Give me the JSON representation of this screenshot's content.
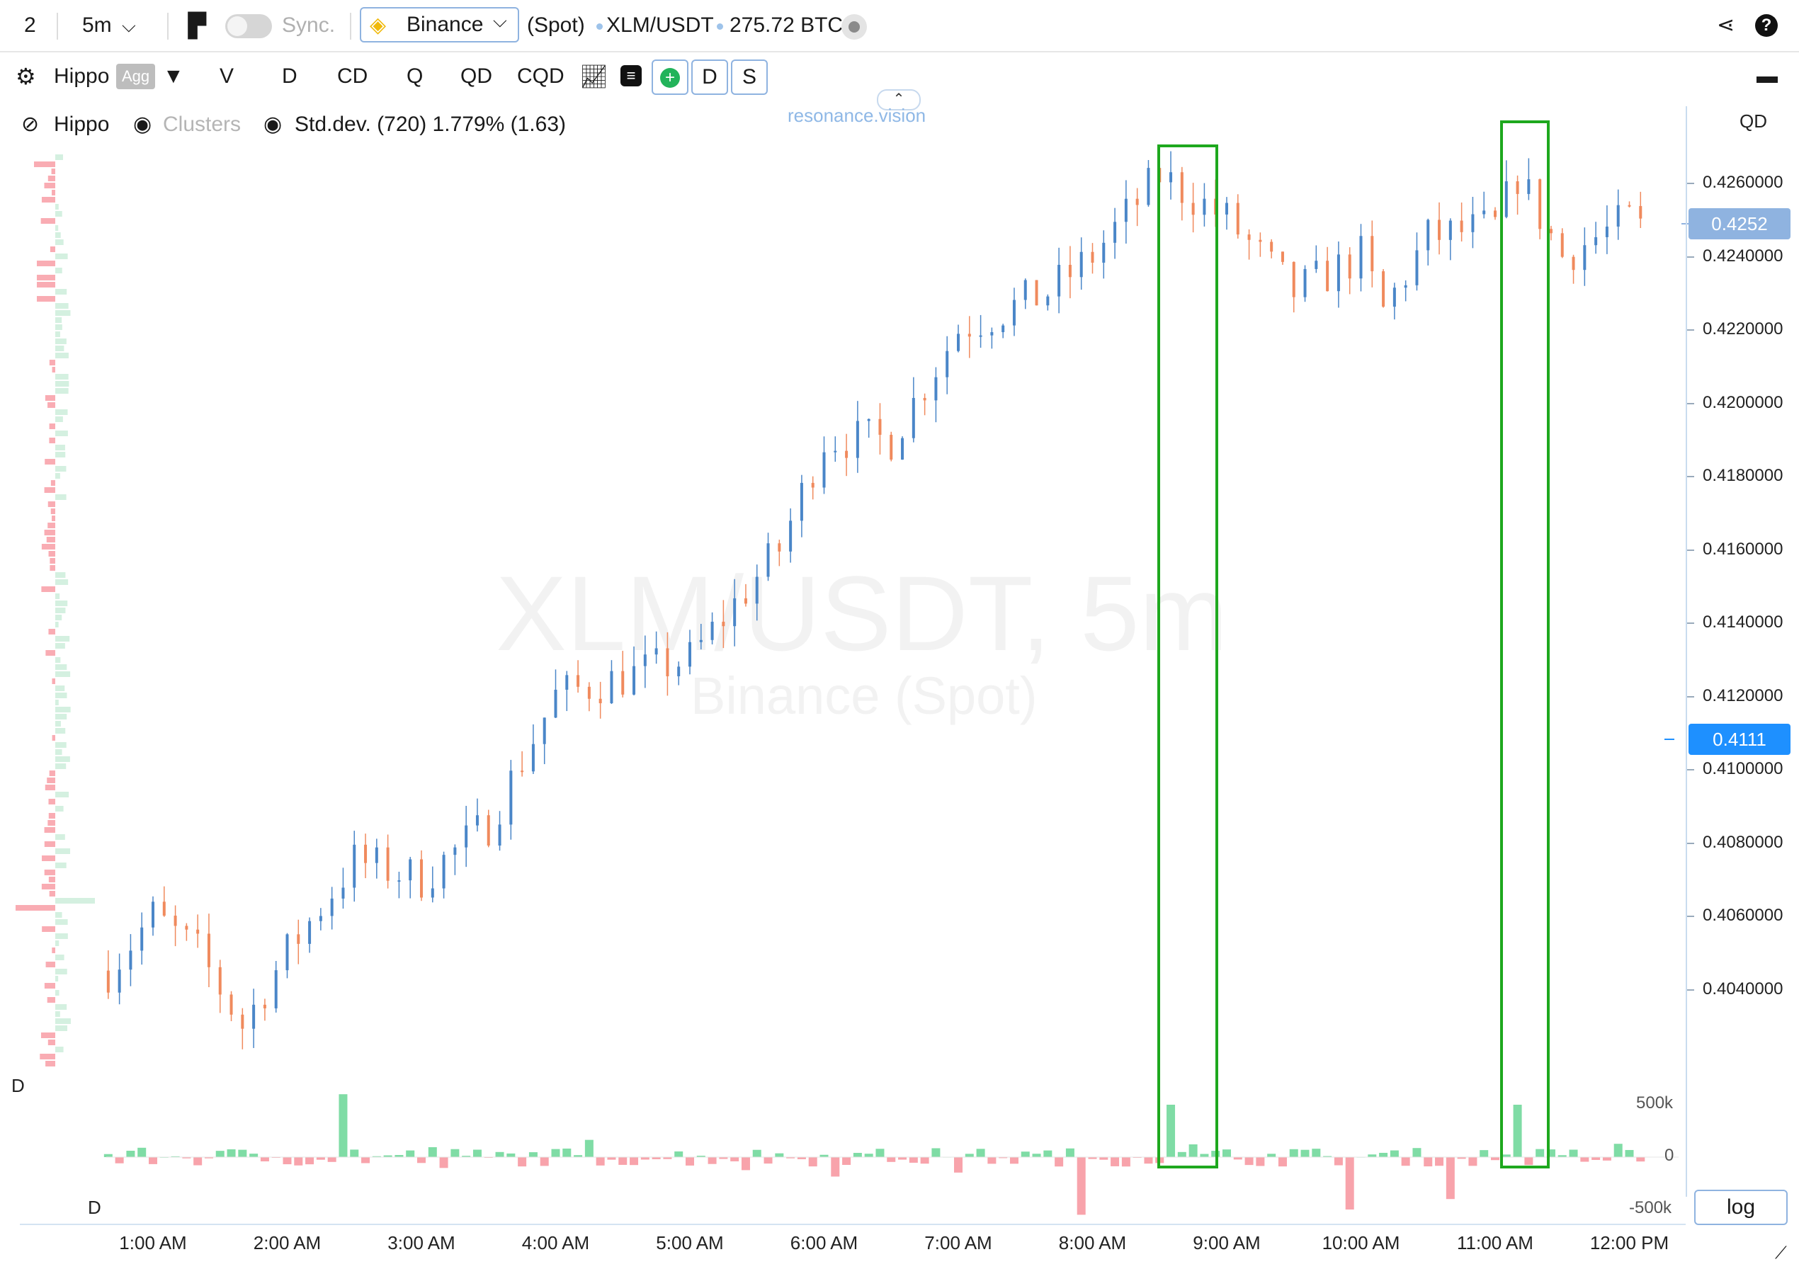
{
  "topbar": {
    "layout_num": "2",
    "timeframe": "5m",
    "sync_label": "Sync.",
    "exchange": "Binance",
    "market": "(Spot)",
    "pair": "XLM/USDT",
    "volume": "275.72 BTC"
  },
  "toolbar": {
    "indicator": "Hippo",
    "agg": "Agg",
    "buttons": [
      "V",
      "D",
      "CD",
      "Q",
      "QD",
      "CQD"
    ],
    "box_buttons": [
      "D",
      "S"
    ]
  },
  "legend": {
    "hippo": "Hippo",
    "clusters": "Clusters",
    "stddev": "Std.dev. (720) 1.779% (1.63)"
  },
  "watermark": {
    "title": "XLM/USDT, 5m",
    "subtitle": "Binance (Spot)",
    "site": "resonance.vision"
  },
  "axis": {
    "title": "QD",
    "price_ticks": [
      "0.4260000",
      "0.4240000",
      "0.4220000",
      "0.4200000",
      "0.4180000",
      "0.4160000",
      "0.4140000",
      "0.4120000",
      "0.4100000",
      "0.4080000",
      "0.4060000",
      "0.4040000"
    ],
    "current_price_tag": "0.4252",
    "cursor_price_tag": "0.4111",
    "delta_ticks": [
      "500k",
      "0",
      "-500k"
    ],
    "log_label": "log",
    "pane_label_upper": "D",
    "pane_label_lower": "D",
    "time_ticks": [
      "1:00 AM",
      "2:00 AM",
      "3:00 AM",
      "4:00 AM",
      "5:00 AM",
      "6:00 AM",
      "7:00 AM",
      "8:00 AM",
      "9:00 AM",
      "10:00 AM",
      "11:00 AM",
      "12:00 PM"
    ]
  },
  "colors": {
    "accent": "#1e90ff",
    "current_price": "#8fb3e0",
    "buy": "#7fdca5",
    "sell": "#f8a3ab",
    "candle_up": "#4a86c8",
    "candle_down": "#f08a5d",
    "highlight": "#1ea81e"
  },
  "chart_data": {
    "type": "bar",
    "title": "XLM/USDT, 5m",
    "price_range": [
      0.4025,
      0.4275
    ],
    "price_path_hourly": [
      {
        "t": "0:40",
        "p": 0.4045
      },
      {
        "t": "1:00",
        "p": 0.406
      },
      {
        "t": "1:20",
        "p": 0.405
      },
      {
        "t": "1:40",
        "p": 0.403
      },
      {
        "t": "2:00",
        "p": 0.405
      },
      {
        "t": "2:30",
        "p": 0.4075
      },
      {
        "t": "3:00",
        "p": 0.407
      },
      {
        "t": "3:30",
        "p": 0.4085
      },
      {
        "t": "4:00",
        "p": 0.412
      },
      {
        "t": "4:30",
        "p": 0.4125
      },
      {
        "t": "5:00",
        "p": 0.413
      },
      {
        "t": "5:40",
        "p": 0.416
      },
      {
        "t": "6:00",
        "p": 0.419
      },
      {
        "t": "6:30",
        "p": 0.419
      },
      {
        "t": "7:00",
        "p": 0.422
      },
      {
        "t": "7:40",
        "p": 0.423
      },
      {
        "t": "8:00",
        "p": 0.424
      },
      {
        "t": "8:30",
        "p": 0.4262
      },
      {
        "t": "9:00",
        "p": 0.425
      },
      {
        "t": "9:30",
        "p": 0.423
      },
      {
        "t": "10:00",
        "p": 0.424
      },
      {
        "t": "10:10",
        "p": 0.4225
      },
      {
        "t": "10:30",
        "p": 0.4245
      },
      {
        "t": "11:00",
        "p": 0.4248
      },
      {
        "t": "11:10",
        "p": 0.4262
      },
      {
        "t": "11:30",
        "p": 0.424
      },
      {
        "t": "12:00",
        "p": 0.425
      },
      {
        "t": "12:10",
        "p": 0.4245
      }
    ],
    "delta_spikes": [
      {
        "t": "2:25",
        "value": 600000
      },
      {
        "t": "8:35",
        "value": 500000
      },
      {
        "t": "11:10",
        "value": 500000
      },
      {
        "t": "7:55",
        "value": -550000
      },
      {
        "t": "9:55",
        "value": -500000
      },
      {
        "t": "10:40",
        "value": -400000
      }
    ]
  }
}
